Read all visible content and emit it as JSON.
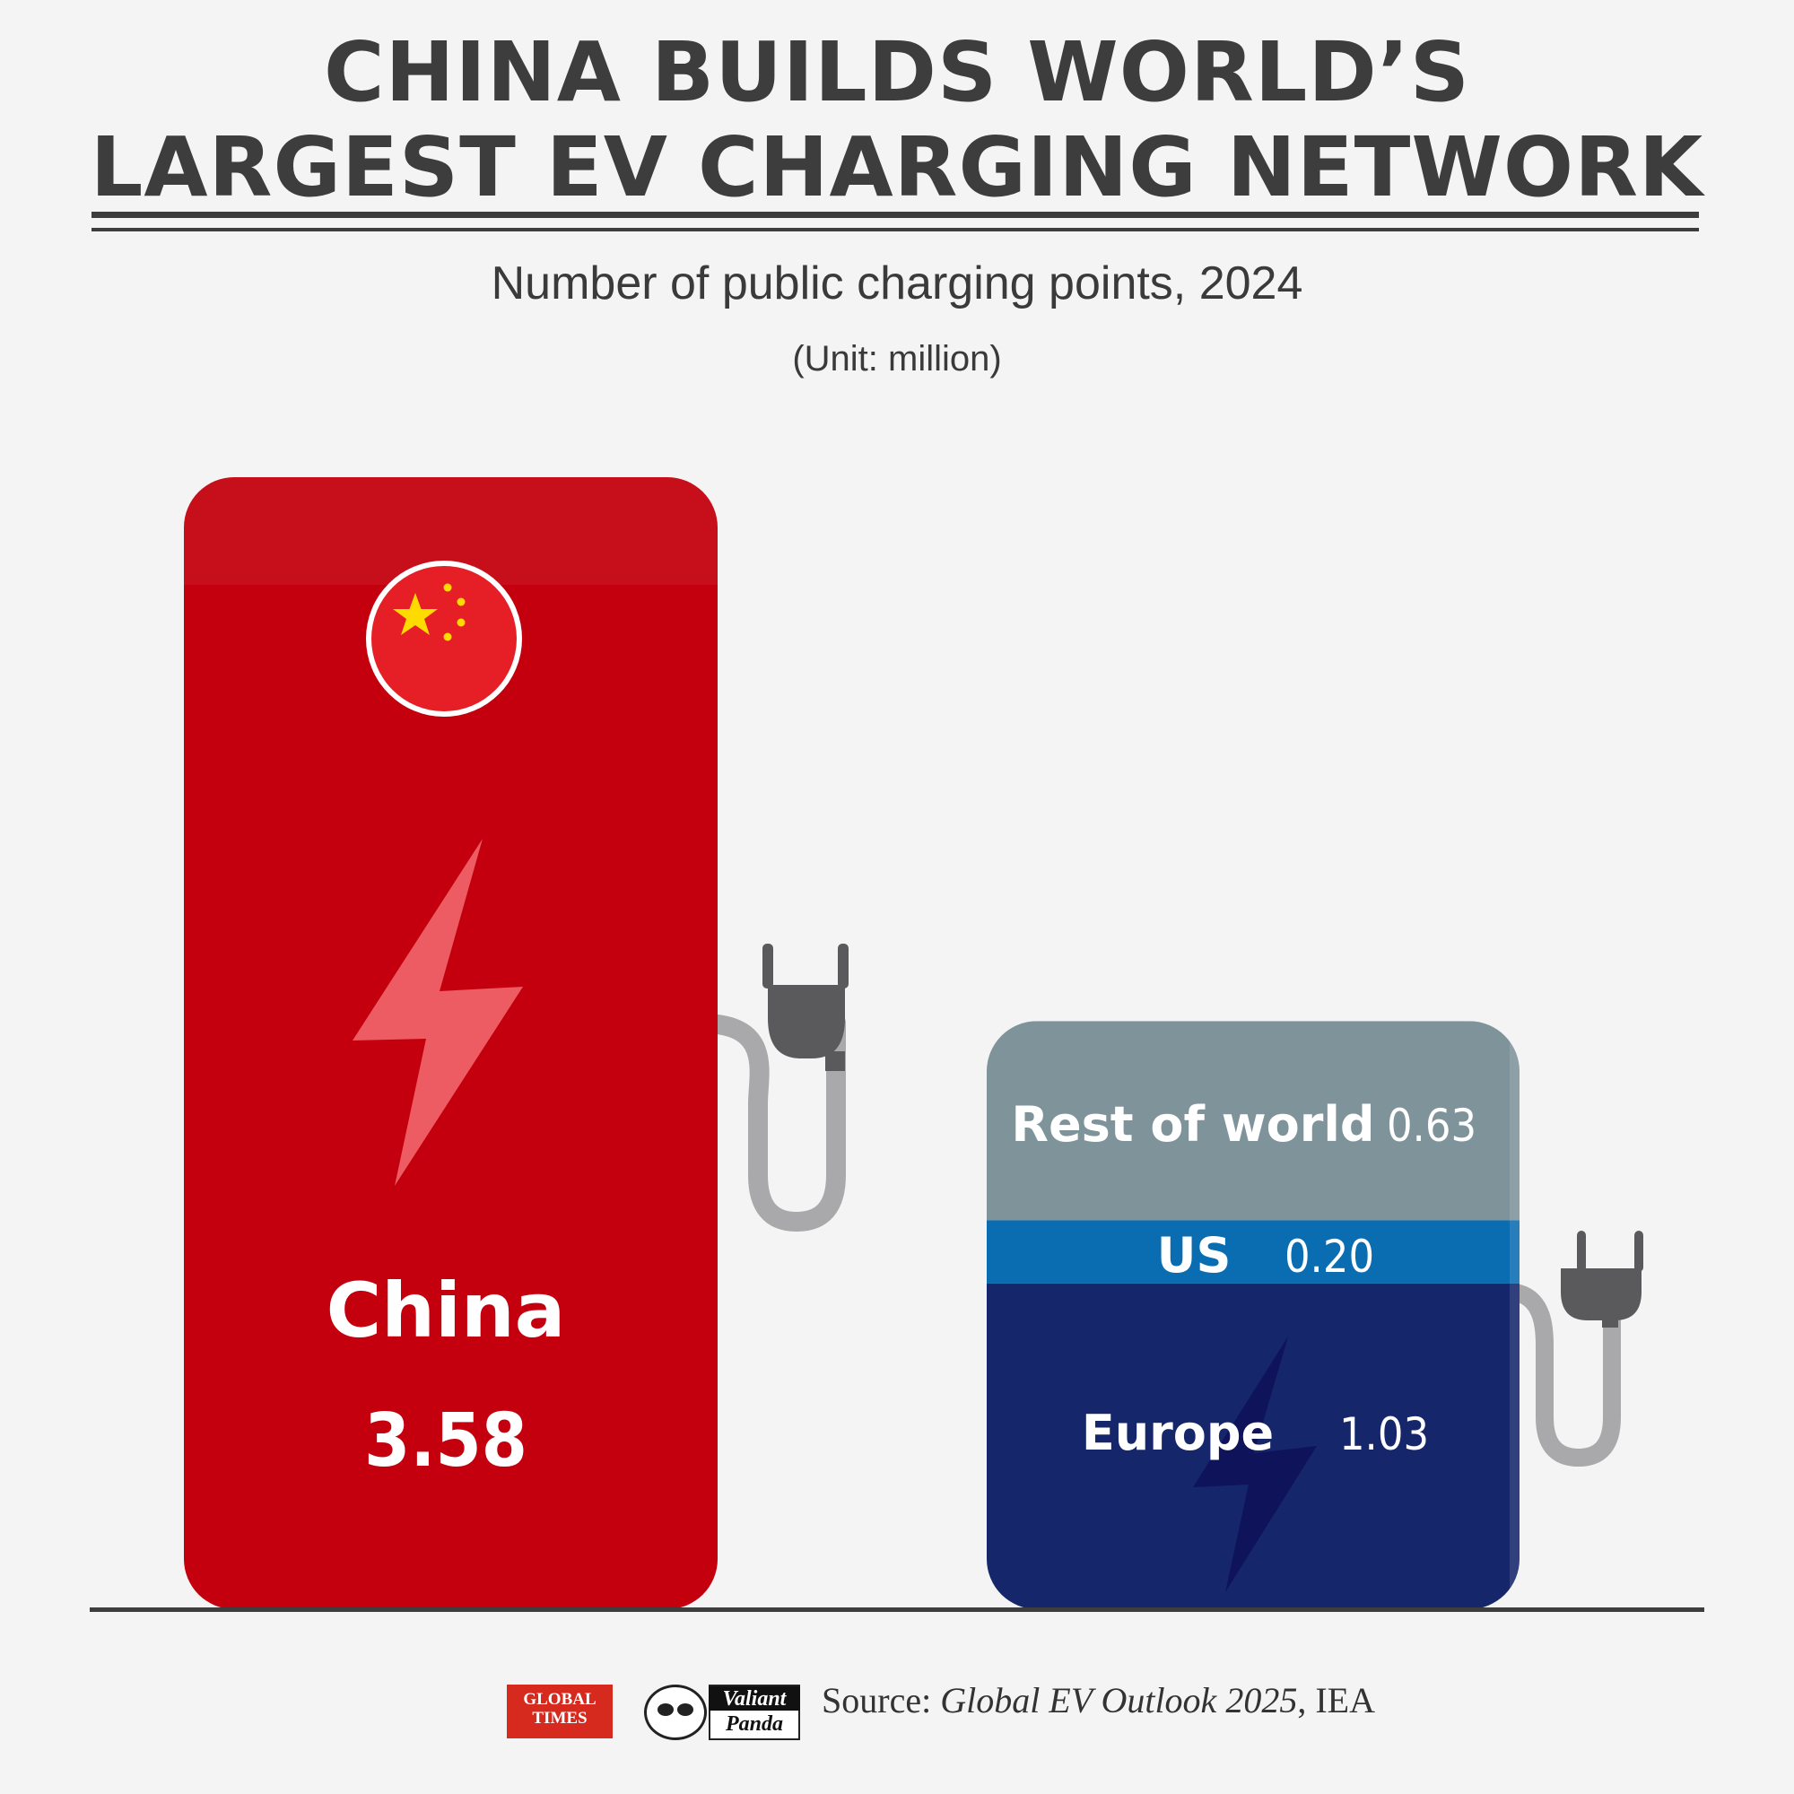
{
  "header": {
    "title_line1": "CHINA BUILDS WORLD’S",
    "title_line2": "LARGEST EV CHARGING NETWORK",
    "subtitle": "Number of public charging points, 2024",
    "unit": "(Unit: million)"
  },
  "chart_data": {
    "type": "bar",
    "title": "CHINA BUILDS WORLD’S LARGEST EV CHARGING NETWORK",
    "subtitle": "Number of public charging points, 2024",
    "unit": "million",
    "categories": [
      "China",
      "Rest of world"
    ],
    "series": [
      {
        "name": "China",
        "category": "China",
        "value": 3.58,
        "value_label": "3.58",
        "color": "#c4000e"
      },
      {
        "name": "Europe",
        "category": "Rest of world",
        "value": 1.03,
        "value_label": "1.03",
        "color": "#15266b"
      },
      {
        "name": "US",
        "category": "Rest of world",
        "value": 0.2,
        "value_label": "0.20",
        "color": "#0a6db2"
      },
      {
        "name": "Rest of world",
        "category": "Rest of world",
        "value": 0.63,
        "value_label": "0.63",
        "color": "#7f939b"
      }
    ],
    "ylim": [
      0,
      3.58
    ],
    "grid": false,
    "legend": "none"
  },
  "colors": {
    "china": "#c4000e",
    "europe": "#15266b",
    "us": "#0a6db2",
    "rest": "#7f939b",
    "plug": "#5a5a5c",
    "cable": "#a9a9ab",
    "text": "#3a3a3a"
  },
  "footer": {
    "source_prefix": "Source: ",
    "source_title": "Global EV Outlook 2025",
    "source_suffix": ", IEA",
    "logo_global_times_line1": "GLOBAL",
    "logo_global_times_line2": "TIMES",
    "logo_valiant": "Valiant",
    "logo_panda": "Panda"
  }
}
